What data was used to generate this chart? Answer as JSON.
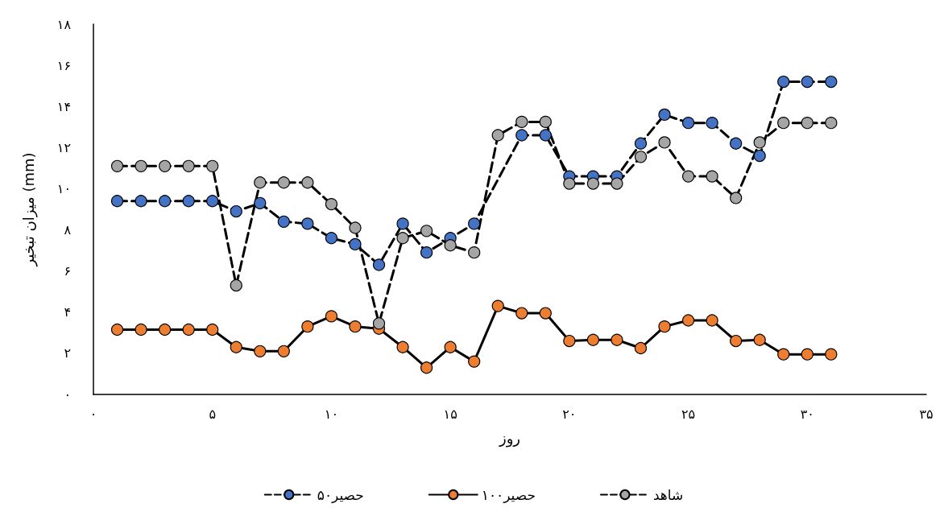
{
  "chart_data": {
    "type": "line",
    "xlabel": "روز",
    "ylabel": "میزان تبخیر (mm)",
    "x": [
      1,
      2,
      3,
      4,
      5,
      6,
      7,
      8,
      9,
      10,
      11,
      12,
      13,
      14,
      15,
      16,
      17,
      18,
      19,
      20,
      21,
      22,
      23,
      24,
      25,
      26,
      27,
      28,
      29,
      30,
      31
    ],
    "xlim": [
      0,
      35
    ],
    "xticks": [
      {
        "value": 0,
        "label": "۰"
      },
      {
        "value": 5,
        "label": "۵"
      },
      {
        "value": 10,
        "label": "۱۰"
      },
      {
        "value": 15,
        "label": "۱۵"
      },
      {
        "value": 20,
        "label": "۲۰"
      },
      {
        "value": 25,
        "label": "۲۵"
      },
      {
        "value": 30,
        "label": "۳۰"
      },
      {
        "value": 35,
        "label": "۳۵"
      }
    ],
    "ylim": [
      0,
      18
    ],
    "yticks": [
      {
        "value": 0,
        "label": "۰"
      },
      {
        "value": 2,
        "label": "۲"
      },
      {
        "value": 4,
        "label": "۴"
      },
      {
        "value": 6,
        "label": "۶"
      },
      {
        "value": 8,
        "label": "۸"
      },
      {
        "value": 10,
        "label": "۱۰"
      },
      {
        "value": 12,
        "label": "۱۲"
      },
      {
        "value": 14,
        "label": "۱۴"
      },
      {
        "value": 16,
        "label": "۱۶"
      },
      {
        "value": 18,
        "label": "۱۸"
      }
    ],
    "grid": false,
    "legend": "bottom",
    "marker": "circle",
    "series": [
      {
        "name": "حصیر۵۰",
        "color": "#4472c4",
        "line_style": "dashed",
        "values": [
          9.4,
          9.4,
          9.4,
          9.4,
          9.4,
          8.9,
          9.3,
          8.4,
          8.3,
          7.6,
          7.3,
          6.3,
          8.3,
          6.9,
          7.6,
          8.3,
          null,
          12.6,
          12.6,
          10.6,
          10.6,
          10.6,
          12.2,
          13.6,
          13.2,
          13.2,
          12.2,
          11.6,
          15.2,
          15.2,
          15.2
        ]
      },
      {
        "name": "حصیر۱۰۰",
        "color": "#ed7d31",
        "line_style": "solid",
        "values": [
          3.15,
          3.15,
          3.15,
          3.15,
          3.15,
          2.3,
          2.1,
          2.1,
          3.3,
          3.8,
          3.3,
          3.2,
          2.3,
          1.3,
          2.3,
          1.6,
          4.3,
          3.95,
          3.95,
          2.6,
          2.65,
          2.65,
          2.25,
          3.3,
          3.6,
          3.6,
          2.6,
          2.65,
          1.95,
          1.95,
          1.95
        ]
      },
      {
        "name": "شاهد",
        "color": "#a5a5a5",
        "line_style": "dashed",
        "values": [
          11.1,
          11.1,
          11.1,
          11.1,
          11.1,
          5.3,
          10.3,
          10.3,
          10.3,
          9.25,
          8.1,
          3.45,
          7.6,
          7.95,
          7.25,
          6.9,
          12.6,
          13.25,
          13.25,
          10.25,
          10.25,
          10.25,
          11.55,
          12.25,
          10.6,
          10.6,
          9.55,
          12.25,
          13.2,
          13.2,
          13.2
        ]
      }
    ]
  }
}
